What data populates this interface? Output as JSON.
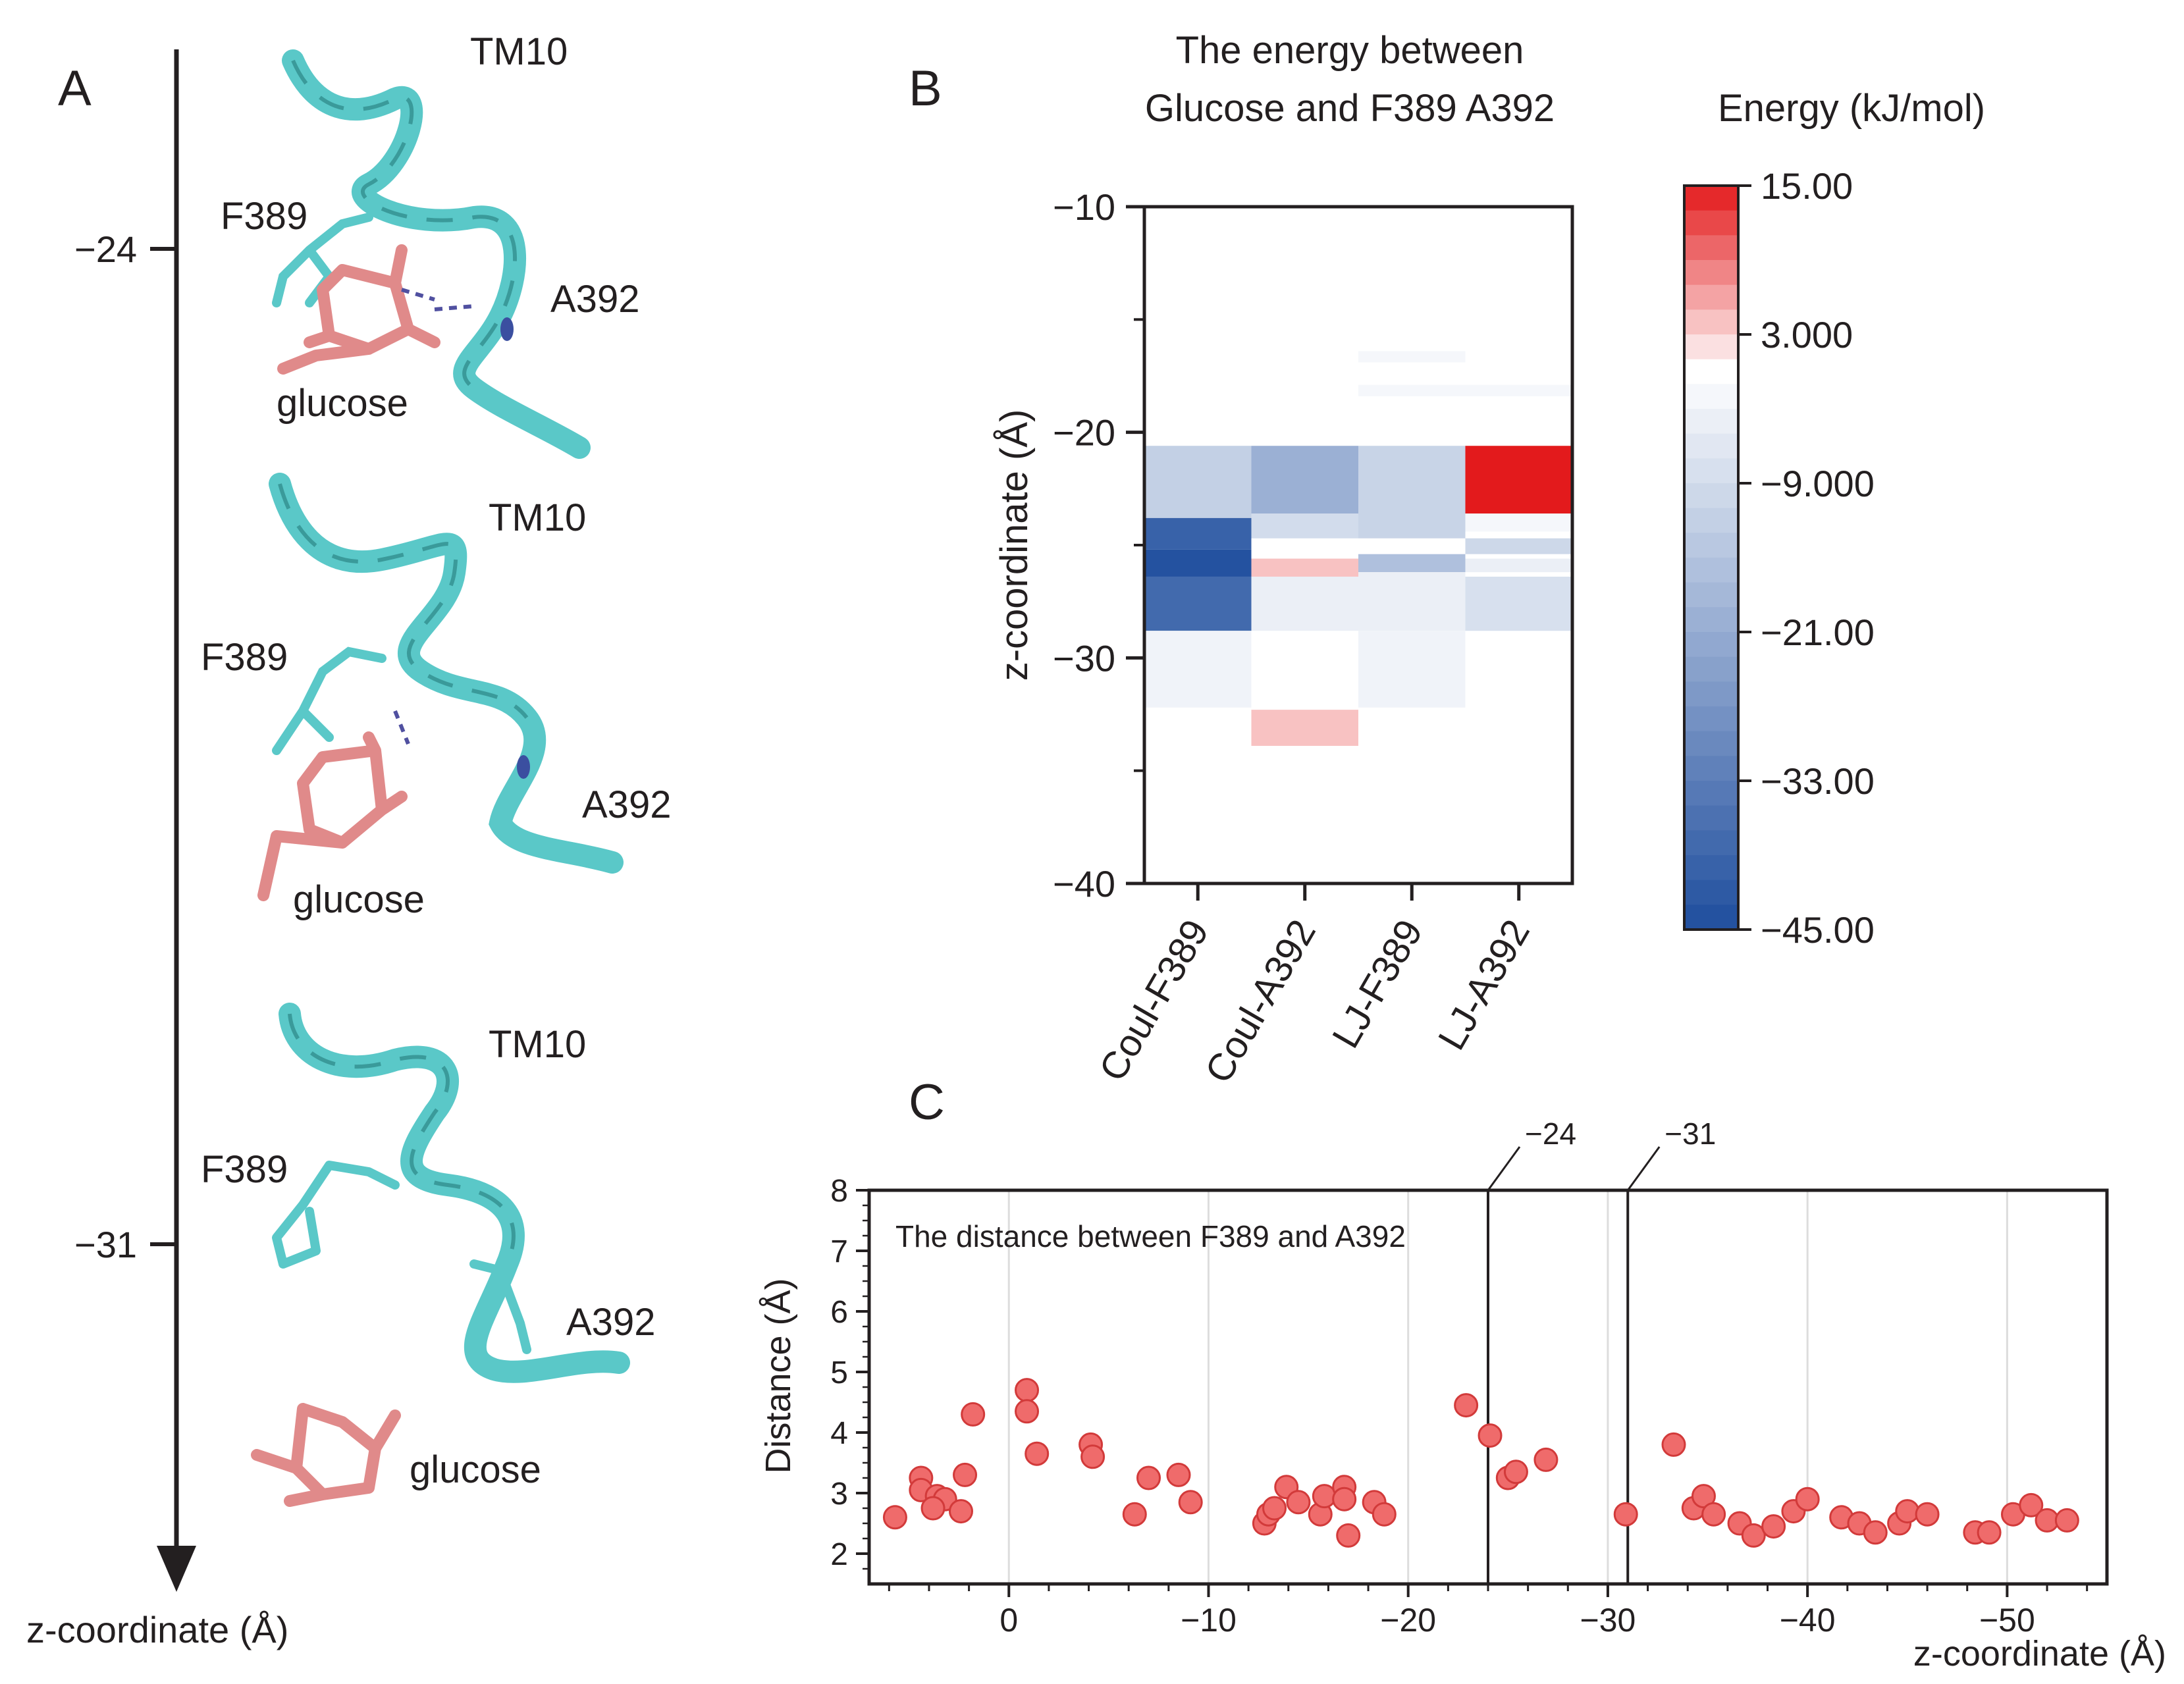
{
  "panel_a": {
    "letter": "A",
    "axis_label": "z-coordinate (Å)",
    "ticks": [
      "−24",
      "−31"
    ],
    "structures": [
      {
        "helix": "TM10",
        "residue1": "F389",
        "residue2": "A392",
        "ligand": "glucose"
      },
      {
        "helix": "TM10",
        "residue1": "F389",
        "residue2": "A392",
        "ligand": "glucose"
      },
      {
        "helix": "TM10",
        "residue1": "F389",
        "residue2": "A392",
        "ligand": "glucose"
      }
    ],
    "colors": {
      "helix": "#5ac8c8",
      "helix_dark": "#3a9a9a",
      "glucose": "#e08a8a",
      "glucose_dark": "#b85a5a",
      "oxygen": "#d94040",
      "nitrogen": "#3b4fa0"
    }
  },
  "panel_b": {
    "letter": "B",
    "title_line1": "The energy between",
    "title_line2": "Glucose and F389 A392",
    "colorbar_title": "Energy (kJ/mol)",
    "colorbar_ticks": [
      "15.00",
      "3.000",
      "−9.000",
      "−21.00",
      "−33.00",
      "−45.00"
    ],
    "ylabel": "z-coordinate (Å)",
    "yticks": [
      "−10",
      "−20",
      "−30",
      "−40"
    ],
    "xticks": [
      "Coul-F389",
      "Coul-A392",
      "LJ-F389",
      "LJ-A392"
    ]
  },
  "panel_c": {
    "letter": "C",
    "annotation": "The distance between F389 and A392",
    "ylabel": "Distance (Å)",
    "xlabel": "z-coordinate (Å)",
    "xticks": [
      "0",
      "−10",
      "−20",
      "−30",
      "−40",
      "−50"
    ],
    "yticks": [
      "2",
      "3",
      "4",
      "5",
      "6",
      "7",
      "8"
    ],
    "vline_labels": [
      "−24",
      "−31"
    ],
    "point_color": "#ef6b6b",
    "point_edge": "#d23a3a"
  },
  "chart_data": [
    {
      "type": "heatmap",
      "title": "The energy between Glucose and F389 A392",
      "ylabel": "z-coordinate (Å)",
      "ylim": [
        -10,
        -40
      ],
      "colorbar": {
        "label": "Energy (kJ/mol)",
        "range": [
          -45,
          15
        ],
        "colors": {
          "negative": "#1f4e9e",
          "zero": "#ffffff",
          "positive": "#e31a1c"
        }
      },
      "categories": [
        "Coul-F389",
        "Coul-A392",
        "LJ-F389",
        "LJ-A392"
      ],
      "cells": [
        {
          "col": 0,
          "z0": -20.6,
          "z1": -23.8,
          "value": -12
        },
        {
          "col": 0,
          "z0": -23.8,
          "z1": -25.2,
          "value": -40
        },
        {
          "col": 0,
          "z0": -25.2,
          "z1": -26.4,
          "value": -44
        },
        {
          "col": 0,
          "z0": -26.4,
          "z1": -28.8,
          "value": -38
        },
        {
          "col": 0,
          "z0": -28.8,
          "z1": -32.2,
          "value": -3
        },
        {
          "col": 1,
          "z0": -20.6,
          "z1": -23.6,
          "value": -20
        },
        {
          "col": 1,
          "z0": -23.6,
          "z1": -24.7,
          "value": -9
        },
        {
          "col": 1,
          "z0": -25.6,
          "z1": -26.4,
          "value": 4
        },
        {
          "col": 1,
          "z0": -26.4,
          "z1": -28.8,
          "value": -4
        },
        {
          "col": 1,
          "z0": -32.3,
          "z1": -33.9,
          "value": 4
        },
        {
          "col": 2,
          "z0": -16.4,
          "z1": -16.9,
          "value": -2
        },
        {
          "col": 2,
          "z0": -17.9,
          "z1": -18.4,
          "value": -2
        },
        {
          "col": 2,
          "z0": -20.6,
          "z1": -24.7,
          "value": -11
        },
        {
          "col": 2,
          "z0": -25.4,
          "z1": -26.2,
          "value": -16
        },
        {
          "col": 2,
          "z0": -26.2,
          "z1": -28.8,
          "value": -4
        },
        {
          "col": 2,
          "z0": -28.8,
          "z1": -32.2,
          "value": -3
        },
        {
          "col": 3,
          "z0": -17.9,
          "z1": -18.4,
          "value": -2
        },
        {
          "col": 3,
          "z0": -20.6,
          "z1": -23.6,
          "value": 15
        },
        {
          "col": 3,
          "z0": -23.6,
          "z1": -24.4,
          "value": -2
        },
        {
          "col": 3,
          "z0": -24.7,
          "z1": -25.4,
          "value": -10
        },
        {
          "col": 3,
          "z0": -25.6,
          "z1": -26.2,
          "value": -4
        },
        {
          "col": 3,
          "z0": -26.4,
          "z1": -28.8,
          "value": -8
        }
      ]
    },
    {
      "type": "scatter",
      "title": "The distance between F389 and A392",
      "xlabel": "z-coordinate (Å)",
      "ylabel": "Distance (Å)",
      "xlim": [
        7,
        -55
      ],
      "ylim": [
        1.5,
        8
      ],
      "grid": true,
      "vlines": [
        -24,
        -31
      ],
      "points": [
        [
          5.7,
          2.6
        ],
        [
          4.4,
          3.25
        ],
        [
          4.4,
          3.05
        ],
        [
          3.6,
          2.95
        ],
        [
          3.2,
          2.9
        ],
        [
          3.8,
          2.75
        ],
        [
          2.4,
          2.7
        ],
        [
          2.2,
          3.3
        ],
        [
          1.8,
          4.3
        ],
        [
          -0.9,
          4.7
        ],
        [
          -0.9,
          4.35
        ],
        [
          -1.4,
          3.65
        ],
        [
          -4.1,
          3.8
        ],
        [
          -4.2,
          3.6
        ],
        [
          -6.3,
          2.65
        ],
        [
          -7.0,
          3.25
        ],
        [
          -8.5,
          3.3
        ],
        [
          -9.1,
          2.85
        ],
        [
          -12.8,
          2.5
        ],
        [
          -13.0,
          2.65
        ],
        [
          -13.3,
          2.75
        ],
        [
          -13.9,
          3.1
        ],
        [
          -14.5,
          2.85
        ],
        [
          -15.6,
          2.65
        ],
        [
          -15.8,
          2.95
        ],
        [
          -16.8,
          3.1
        ],
        [
          -16.8,
          2.9
        ],
        [
          -17.0,
          2.3
        ],
        [
          -18.3,
          2.85
        ],
        [
          -18.8,
          2.65
        ],
        [
          -22.9,
          4.45
        ],
        [
          -24.1,
          3.95
        ],
        [
          -25.0,
          3.25
        ],
        [
          -25.4,
          3.35
        ],
        [
          -26.9,
          3.55
        ],
        [
          -30.9,
          2.65
        ],
        [
          -33.3,
          3.8
        ],
        [
          -34.3,
          2.75
        ],
        [
          -34.8,
          2.95
        ],
        [
          -35.3,
          2.65
        ],
        [
          -36.6,
          2.5
        ],
        [
          -37.3,
          2.3
        ],
        [
          -38.3,
          2.45
        ],
        [
          -39.3,
          2.7
        ],
        [
          -40.0,
          2.9
        ],
        [
          -41.7,
          2.6
        ],
        [
          -42.6,
          2.5
        ],
        [
          -43.4,
          2.35
        ],
        [
          -44.6,
          2.5
        ],
        [
          -45.0,
          2.7
        ],
        [
          -46.0,
          2.65
        ],
        [
          -48.4,
          2.35
        ],
        [
          -49.1,
          2.35
        ],
        [
          -50.3,
          2.65
        ],
        [
          -51.2,
          2.8
        ],
        [
          -52.0,
          2.55
        ],
        [
          -53.0,
          2.55
        ]
      ]
    }
  ]
}
